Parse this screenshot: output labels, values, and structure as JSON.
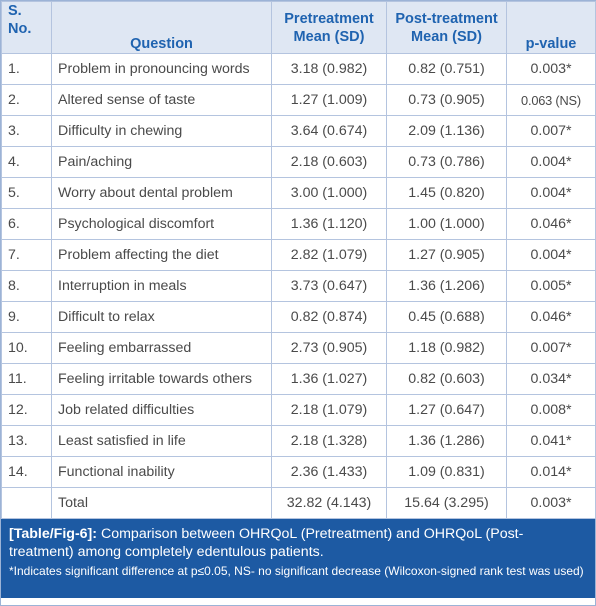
{
  "table": {
    "headers": {
      "sno": [
        "S.",
        "No."
      ],
      "question": "Question",
      "pre": [
        "Pretreatment",
        "Mean (SD)"
      ],
      "post": [
        "Post-treatment",
        "Mean (SD)"
      ],
      "p": "p-value"
    },
    "rows": [
      {
        "sno": "1.",
        "question": "Problem in pronouncing words",
        "pre": "3.18 (0.982)",
        "post": "0.82 (0.751)",
        "p": "0.003*"
      },
      {
        "sno": "2.",
        "question": "Altered sense of taste",
        "pre": "1.27 (1.009)",
        "post": "0.73 (0.905)",
        "p": "0.063 (NS)"
      },
      {
        "sno": "3.",
        "question": "Difficulty in chewing",
        "pre": "3.64 (0.674)",
        "post": "2.09 (1.136)",
        "p": "0.007*"
      },
      {
        "sno": "4.",
        "question": "Pain/aching",
        "pre": "2.18 (0.603)",
        "post": "0.73 (0.786)",
        "p": "0.004*"
      },
      {
        "sno": "5.",
        "question": "Worry about dental problem",
        "pre": "3.00 (1.000)",
        "post": "1.45 (0.820)",
        "p": "0.004*"
      },
      {
        "sno": "6.",
        "question": "Psychological discomfort",
        "pre": "1.36 (1.120)",
        "post": "1.00 (1.000)",
        "p": "0.046*"
      },
      {
        "sno": "7.",
        "question": "Problem affecting the diet",
        "pre": "2.82 (1.079)",
        "post": "1.27 (0.905)",
        "p": "0.004*"
      },
      {
        "sno": "8.",
        "question": "Interruption in meals",
        "pre": "3.73 (0.647)",
        "post": "1.36 (1.206)",
        "p": "0.005*"
      },
      {
        "sno": "9.",
        "question": "Difficult to relax",
        "pre": "0.82 (0.874)",
        "post": "0.45 (0.688)",
        "p": "0.046*"
      },
      {
        "sno": "10.",
        "question": "Feeling embarrassed",
        "pre": "2.73 (0.905)",
        "post": "1.18 (0.982)",
        "p": "0.007*"
      },
      {
        "sno": "11.",
        "question": "Feeling irritable towards others",
        "pre": "1.36 (1.027)",
        "post": "0.82 (0.603)",
        "p": "0.034*"
      },
      {
        "sno": "12.",
        "question": "Job related difficulties",
        "pre": "2.18 (1.079)",
        "post": "1.27 (0.647)",
        "p": "0.008*"
      },
      {
        "sno": "13.",
        "question": "Least satisfied in life",
        "pre": "2.18 (1.328)",
        "post": "1.36 (1.286)",
        "p": "0.041*"
      },
      {
        "sno": "14.",
        "question": "Functional inability",
        "pre": "2.36 (1.433)",
        "post": "1.09 (0.831)",
        "p": "0.014*"
      }
    ],
    "total": {
      "sno": "",
      "question": "Total",
      "pre": "32.82 (4.143)",
      "post": "15.64 (3.295)",
      "p": "0.003*"
    }
  },
  "caption": {
    "label": "[Table/Fig-6]:",
    "text": "Comparison between OHRQoL (Pretreatment) and OHRQoL (Post-treatment) among completely edentulous patients.",
    "note": "*Indicates significant difference at p≤0.05, NS- no significant decrease (Wilcoxon-signed rank test was used)"
  },
  "colors": {
    "header_bg": "#dfe7f3",
    "header_text": "#1f63b0",
    "caption_bg": "#1d5aa3",
    "grid": "#b4c4df"
  }
}
